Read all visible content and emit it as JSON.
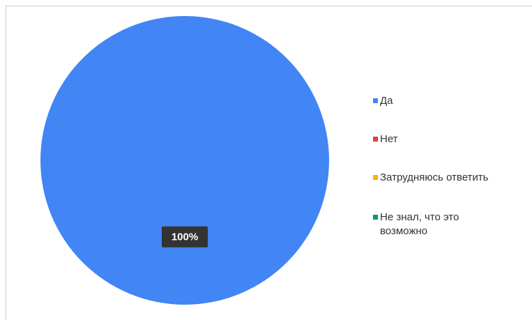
{
  "chart_data": {
    "type": "pie",
    "categories": [
      "Да",
      "Нет",
      "Затрудняюсь ответить",
      "Не знал, что это возможно"
    ],
    "values": [
      100,
      0,
      0,
      0
    ],
    "value_labels": [
      "100%",
      null,
      null,
      null
    ],
    "colors": [
      "#4285f4",
      "#db4437",
      "#f4b400",
      "#0f9d58"
    ],
    "legend": "right"
  }
}
